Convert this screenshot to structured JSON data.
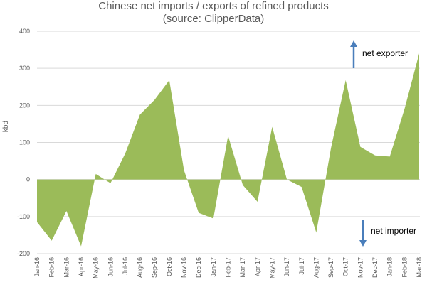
{
  "chart_data": {
    "type": "area",
    "title": "Chinese net imports / exports of refined products",
    "subtitle": "(source: ClipperData)",
    "xlabel": "",
    "ylabel": "kbd",
    "ylim": [
      -200,
      400
    ],
    "yticks": [
      -200,
      -100,
      0,
      100,
      200,
      300,
      400
    ],
    "grid": true,
    "categories": [
      "Jan-16",
      "Feb-16",
      "Mar-16",
      "Apr-16",
      "May-16",
      "Jun-16",
      "Jul-16",
      "Aug-16",
      "Sep-16",
      "Oct-16",
      "Nov-16",
      "Dec-16",
      "Jan-17",
      "Feb-17",
      "Mar-17",
      "Apr-17",
      "May-17",
      "Jun-17",
      "Jul-17",
      "Aug-17",
      "Sep-17",
      "Oct-17",
      "Nov-17",
      "Dec-17",
      "Jan-18",
      "Feb-18",
      "Mar-18"
    ],
    "series": [
      {
        "values": [
          -115,
          -165,
          -85,
          -180,
          15,
          -10,
          70,
          175,
          215,
          268,
          25,
          -90,
          -105,
          118,
          -15,
          -60,
          142,
          0,
          -20,
          -143,
          85,
          268,
          88,
          65,
          62,
          190,
          340
        ],
        "color": "#9bbb59"
      }
    ],
    "annotations": [
      {
        "text": "net exporter",
        "arrow": "up"
      },
      {
        "text": "net importer",
        "arrow": "down"
      }
    ]
  }
}
